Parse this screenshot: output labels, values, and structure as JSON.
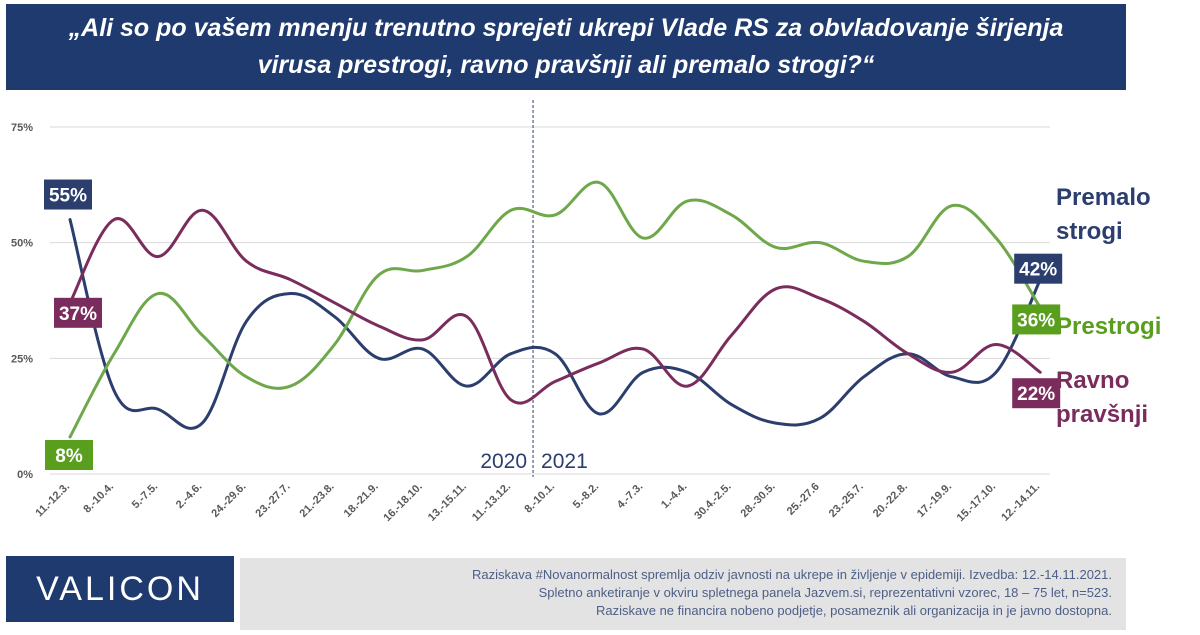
{
  "title": {
    "line1": "„Ali so po vašem mnenju trenutno sprejeti ukrepi Vlade RS za obvladovanje širjenja",
    "line2": "virusa prestrogi, ravno pravšnji ali premalo strogi?“"
  },
  "brand": {
    "logo_text": "VALICON",
    "accent": "#1f3a6e"
  },
  "footer": {
    "line1": "Raziskava #Novanormalnost spremlja odziv javnosti na ukrepe in življenje v epidemiji. Izvedba: 12.-14.11.2021.",
    "line2": "Spletno anketiranje v okviru spletnega panela Jazvem.si, reprezentativni vzorec, 18 – 75 let, n=523.",
    "line3": "Raziskave ne financira nobeno podjetje, posameznik ali organizacija in je javno dostopna."
  },
  "chart_data": {
    "type": "line",
    "categories": [
      "11.-12.3.",
      "8.-10.4.",
      "5.-7.5.",
      "2.-4.6.",
      "24.-29.6.",
      "23.-27.7.",
      "21.-23.8.",
      "18.-21.9.",
      "16.-18.10.",
      "13.-15.11.",
      "11.-13.12.",
      "8.-10.1.",
      "5.-8.2.",
      "4.-7.3.",
      "1.-4.4.",
      "30.4.-2.5.",
      "28.-30.5.",
      "25.-27.6",
      "23.-25.7.",
      "20.-22.8.",
      "17.-19.9.",
      "15.-17.10.",
      "12.-14.11."
    ],
    "ylim": [
      0,
      75
    ],
    "yticks": [
      "0%",
      "25%",
      "50%",
      "75%"
    ],
    "grid": true,
    "year_labels": {
      "left": "2020",
      "right": "2021"
    },
    "series": [
      {
        "name": "Premalo strogi",
        "label_line1": "Premalo",
        "label_line2": "strogi",
        "color": "#2b3e6e",
        "first_label": "55%",
        "last_label": "42%",
        "values": [
          55,
          18,
          14,
          11,
          33,
          39,
          34,
          25,
          27,
          19,
          26,
          26,
          13,
          22,
          22,
          15,
          11,
          12,
          21,
          26,
          21,
          22,
          42
        ]
      },
      {
        "name": "Prestrogi",
        "label_line1": "Prestrogi",
        "label_line2": "",
        "color": "#6fa84a",
        "first_label": "8%",
        "last_label": "36%",
        "values": [
          8,
          26,
          39,
          30,
          21,
          19,
          28,
          43,
          44,
          47,
          57,
          56,
          63,
          51,
          59,
          56,
          49,
          50,
          46,
          47,
          58,
          51,
          36
        ]
      },
      {
        "name": "Ravno pravšnji",
        "label_line1": "Ravno",
        "label_line2": "pravšnji",
        "color": "#7a2c5d",
        "first_label": "37%",
        "last_label": "22%",
        "values": [
          37,
          55,
          47,
          57,
          46,
          42,
          37,
          32,
          29,
          34,
          16,
          20,
          24,
          27,
          19,
          30,
          40,
          38,
          33,
          26,
          22,
          28,
          22
        ]
      }
    ],
    "label_colors": {
      "Premalo strogi": "#2b3e6e",
      "Prestrogi": "#5a9e1e",
      "Ravno pravšnji": "#7a2c5d"
    }
  }
}
